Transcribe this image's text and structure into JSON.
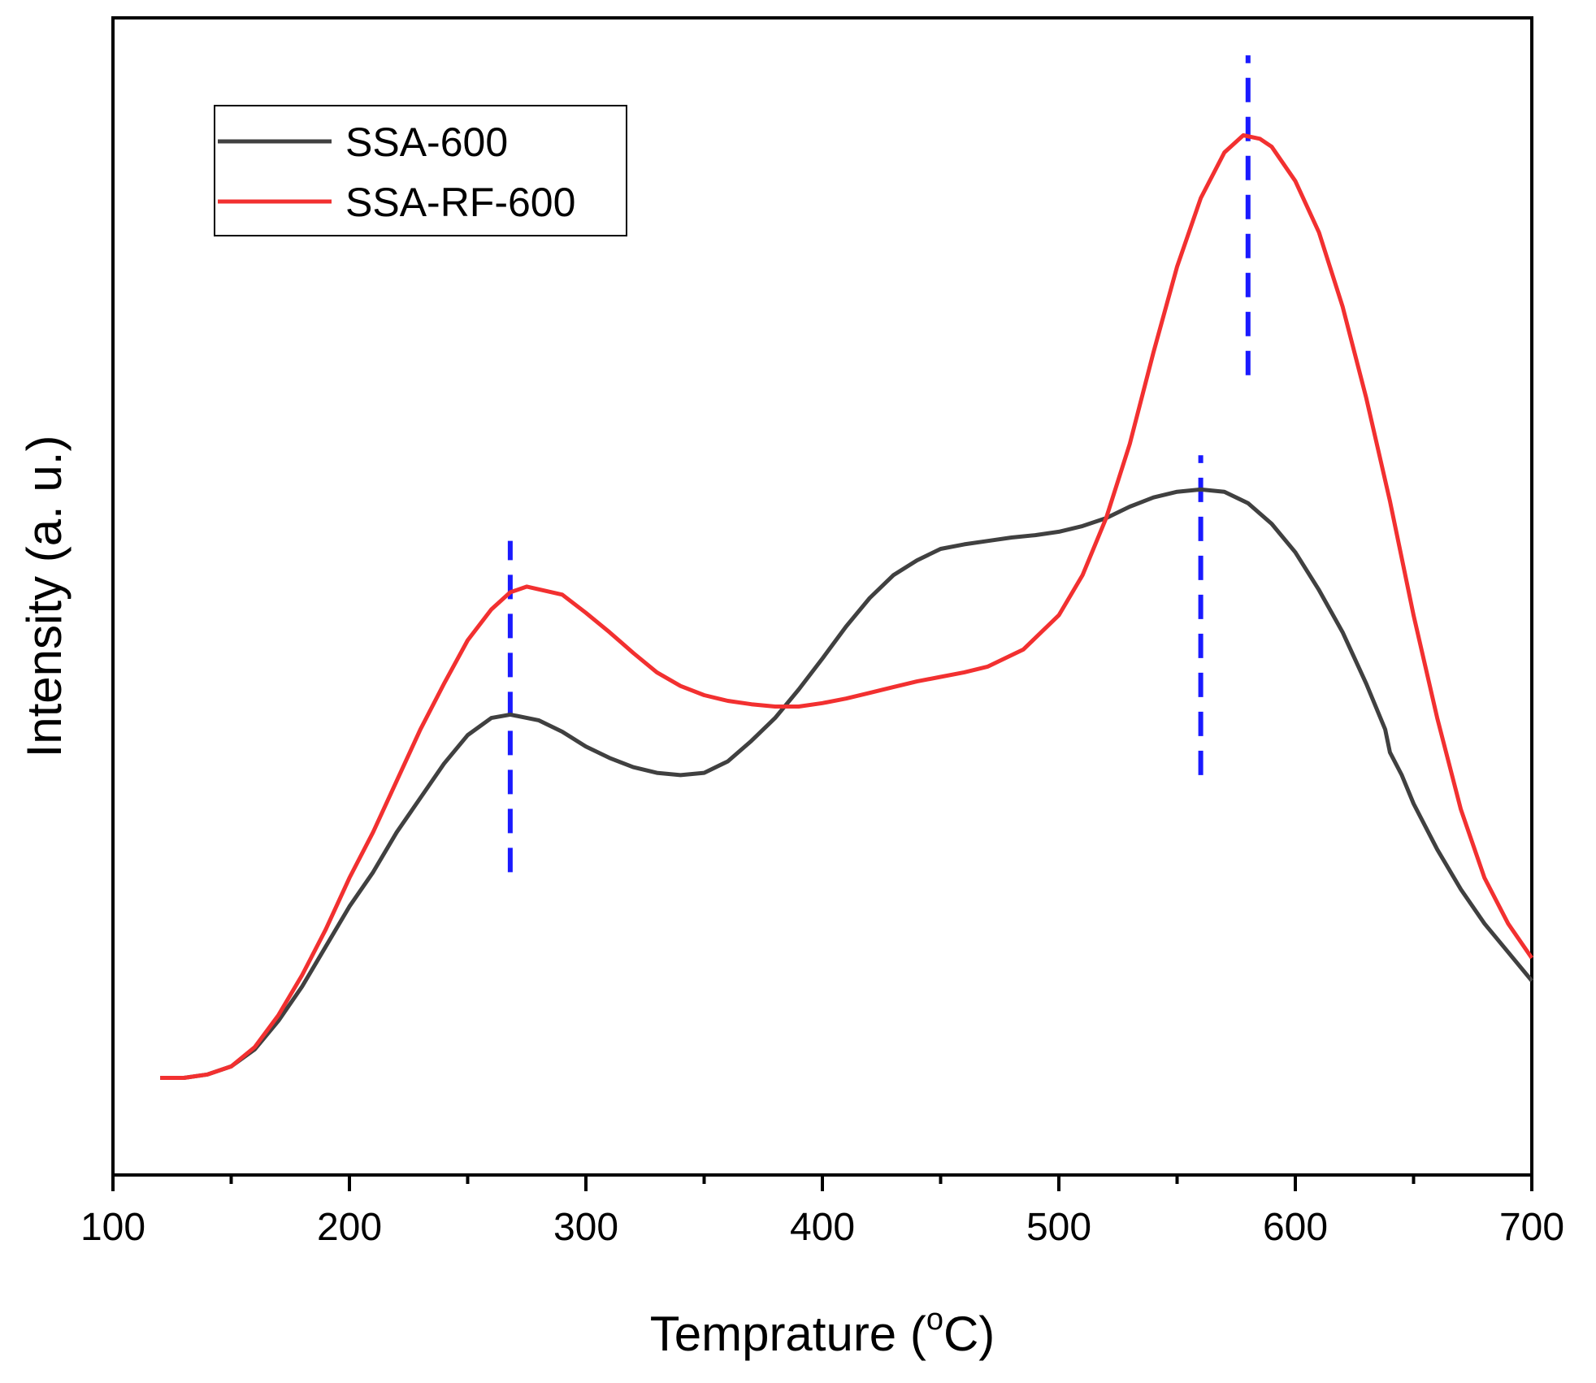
{
  "chart_data": {
    "type": "line",
    "xlabel_main": "Temprature (",
    "xlabel_sup": "o",
    "xlabel_tail": "C)",
    "ylabel": "Intensity (a. u.)",
    "xlim": [
      100,
      700
    ],
    "ylim": [
      0,
      1
    ],
    "x_ticks": [
      100,
      200,
      300,
      400,
      500,
      600,
      700
    ],
    "x_tick_labels": [
      "100",
      "200",
      "300",
      "400",
      "500",
      "600",
      "700"
    ],
    "x_minor_ticks": [
      150,
      250,
      350,
      450,
      550,
      650
    ],
    "grid": false,
    "legend_position": "top-left",
    "series": [
      {
        "name": "SSA-600",
        "color": "#404040",
        "x": [
          120,
          130,
          140,
          150,
          160,
          170,
          180,
          190,
          200,
          210,
          220,
          230,
          240,
          250,
          260,
          268,
          280,
          290,
          300,
          310,
          320,
          330,
          340,
          350,
          360,
          370,
          380,
          390,
          400,
          410,
          420,
          430,
          440,
          450,
          460,
          470,
          480,
          490,
          500,
          510,
          520,
          530,
          540,
          550,
          560,
          570,
          580,
          590,
          600,
          610,
          620,
          630,
          638,
          640,
          645,
          650,
          660,
          670,
          680,
          690,
          700
        ],
        "y": [
          0.085,
          0.085,
          0.088,
          0.095,
          0.11,
          0.135,
          0.165,
          0.2,
          0.235,
          0.265,
          0.3,
          0.33,
          0.36,
          0.385,
          0.4,
          0.403,
          0.398,
          0.388,
          0.375,
          0.365,
          0.357,
          0.352,
          0.35,
          0.352,
          0.362,
          0.38,
          0.4,
          0.425,
          0.452,
          0.48,
          0.505,
          0.525,
          0.538,
          0.548,
          0.552,
          0.555,
          0.558,
          0.56,
          0.563,
          0.568,
          0.575,
          0.585,
          0.593,
          0.598,
          0.6,
          0.598,
          0.588,
          0.57,
          0.545,
          0.512,
          0.475,
          0.43,
          0.39,
          0.37,
          0.35,
          0.325,
          0.285,
          0.25,
          0.22,
          0.195,
          0.17
        ]
      },
      {
        "name": "SSA-RF-600",
        "color": "#f23030",
        "x": [
          120,
          130,
          140,
          150,
          160,
          170,
          180,
          190,
          200,
          210,
          220,
          230,
          240,
          250,
          260,
          268,
          275,
          290,
          300,
          310,
          320,
          330,
          340,
          350,
          360,
          370,
          380,
          390,
          400,
          410,
          420,
          430,
          440,
          450,
          460,
          470,
          480,
          485,
          490,
          500,
          510,
          520,
          530,
          540,
          550,
          560,
          570,
          578,
          585,
          590,
          600,
          610,
          620,
          630,
          640,
          650,
          660,
          670,
          680,
          690,
          700
        ],
        "y": [
          0.085,
          0.085,
          0.088,
          0.095,
          0.112,
          0.14,
          0.175,
          0.215,
          0.26,
          0.3,
          0.345,
          0.39,
          0.43,
          0.468,
          0.495,
          0.51,
          0.515,
          0.508,
          0.492,
          0.475,
          0.457,
          0.44,
          0.428,
          0.42,
          0.415,
          0.412,
          0.41,
          0.41,
          0.413,
          0.417,
          0.422,
          0.427,
          0.432,
          0.436,
          0.44,
          0.445,
          0.455,
          0.46,
          0.47,
          0.49,
          0.525,
          0.575,
          0.64,
          0.72,
          0.795,
          0.855,
          0.895,
          0.91,
          0.907,
          0.9,
          0.87,
          0.825,
          0.76,
          0.68,
          0.59,
          0.49,
          0.4,
          0.32,
          0.26,
          0.22,
          0.19
        ]
      }
    ],
    "reference_lines": [
      {
        "x": 268,
        "y_from": 0.265,
        "y_to": 0.555,
        "color": "#1a1aff"
      },
      {
        "x": 560,
        "y_from": 0.35,
        "y_to": 0.63,
        "color": "#1a1aff"
      },
      {
        "x": 580,
        "y_from": 0.7,
        "y_to": 0.98,
        "color": "#1a1aff"
      }
    ]
  }
}
